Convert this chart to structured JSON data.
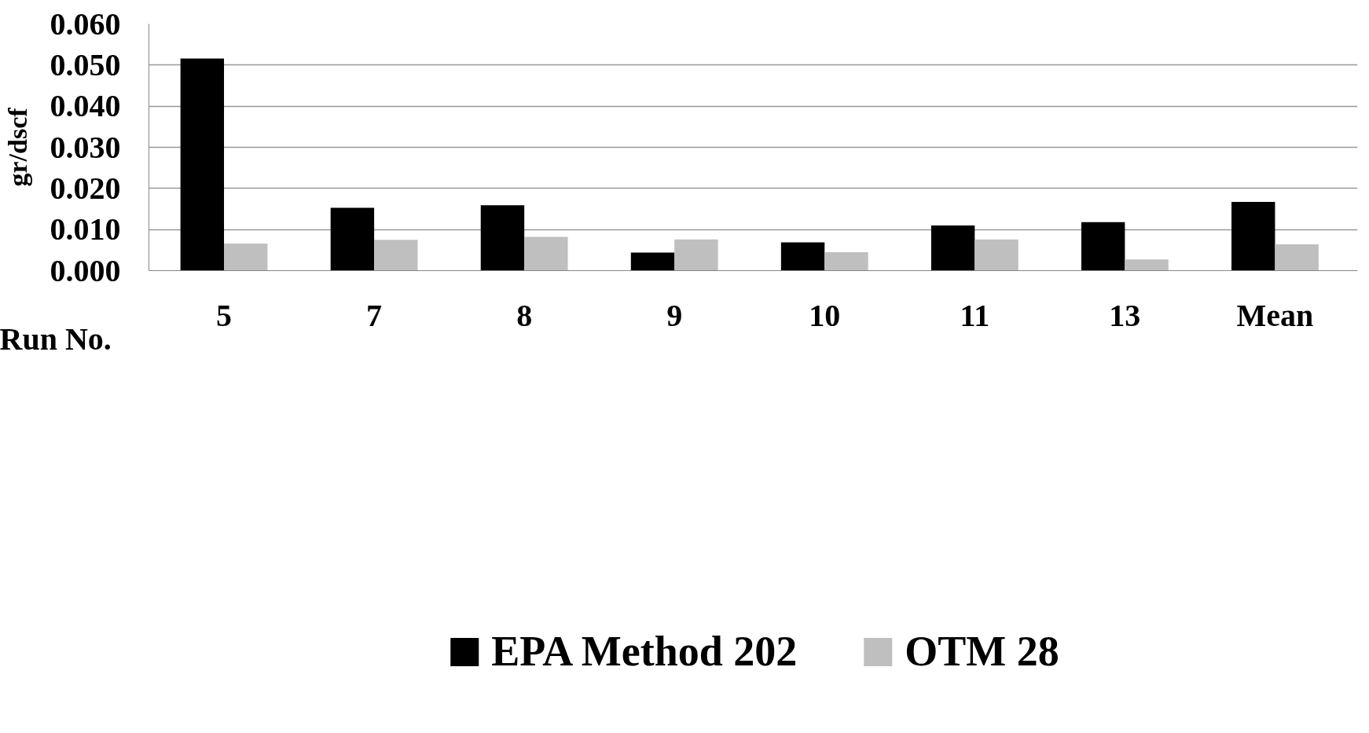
{
  "chart_data": {
    "type": "bar",
    "ylabel": "gr/dscf",
    "xlabel": "Run No.",
    "categories": [
      "5",
      "7",
      "8",
      "9",
      "10",
      "11",
      "13",
      "Mean"
    ],
    "series": [
      {
        "name": "EPA Method 202",
        "color": "#000000",
        "values": [
          0.0516,
          0.0153,
          0.0159,
          0.0044,
          0.0069,
          0.011,
          0.0118,
          0.0167
        ]
      },
      {
        "name": "OTM 28",
        "color": "#bfbfbf",
        "values": [
          0.0066,
          0.0075,
          0.0082,
          0.0076,
          0.0045,
          0.0076,
          0.0027,
          0.0064
        ]
      }
    ],
    "ylim": [
      0,
      0.06
    ],
    "yticks": [
      {
        "value": 0,
        "label": "0.000"
      },
      {
        "value": 0.01,
        "label": "0.010"
      },
      {
        "value": 0.02,
        "label": "0.020"
      },
      {
        "value": 0.03,
        "label": "0.030"
      },
      {
        "value": 0.04,
        "label": "0.040"
      },
      {
        "value": 0.05,
        "label": "0.050"
      },
      {
        "value": 0.06,
        "label": "0.060"
      }
    ],
    "grid": "y",
    "legend": "bottom"
  }
}
